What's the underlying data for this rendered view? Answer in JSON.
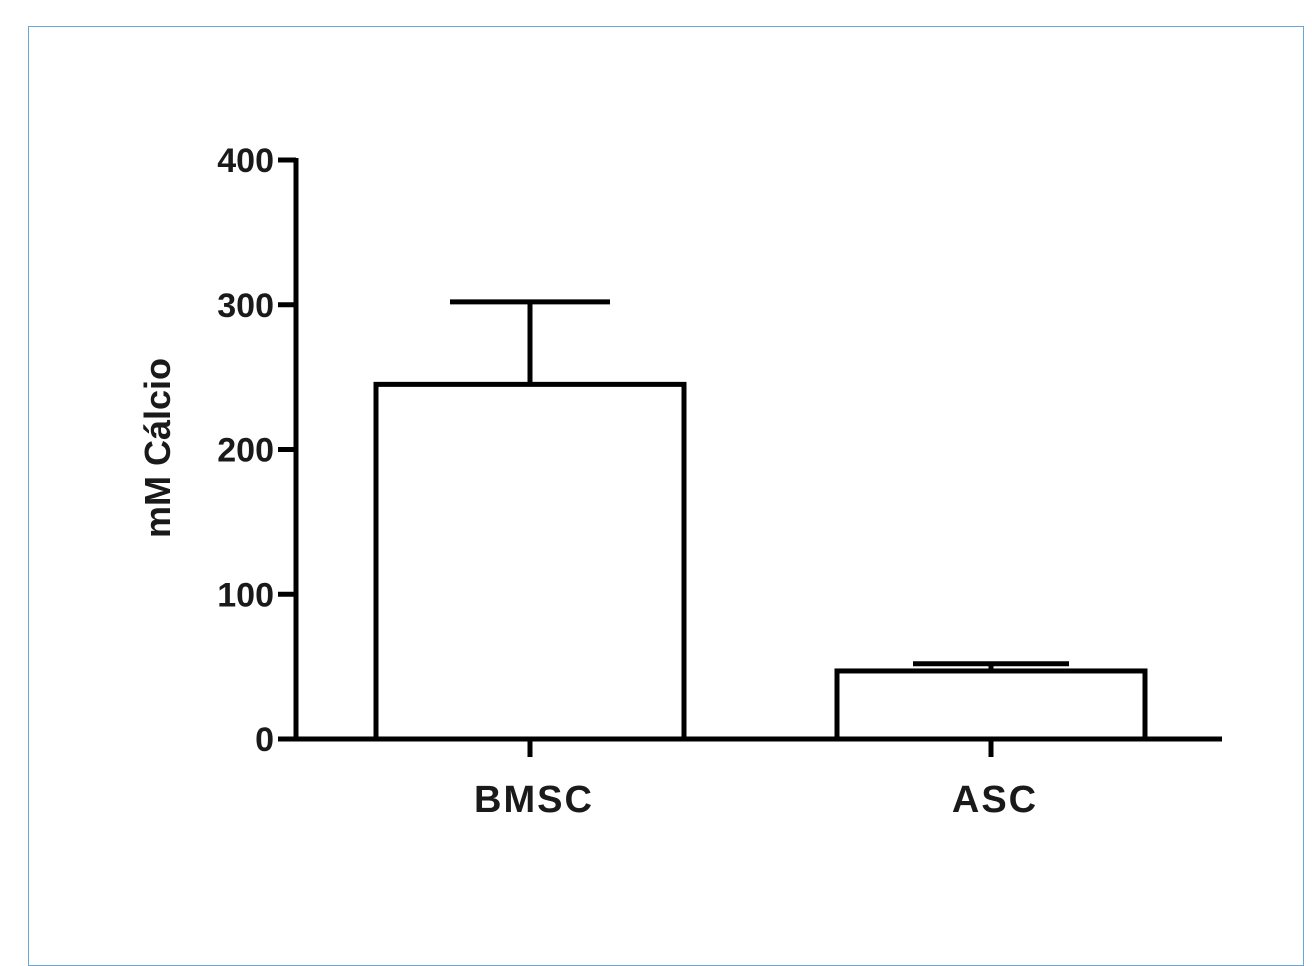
{
  "chart_data": {
    "type": "bar",
    "title": "",
    "xlabel": "",
    "ylabel": "mM Cálcio",
    "categories": [
      "BMSC",
      "ASC"
    ],
    "values": [
      245,
      47
    ],
    "error_upper": [
      302,
      52
    ],
    "ylim": [
      0,
      400
    ],
    "yticks": [
      0,
      100,
      200,
      300,
      400
    ],
    "ytick_labels": [
      "0",
      "100",
      "200",
      "300",
      "400"
    ],
    "grid": false,
    "legend": "none",
    "bar_fill": "#ffffff",
    "bar_stroke": "#000000"
  },
  "frame": {
    "border_color": "#6aa3d6"
  }
}
